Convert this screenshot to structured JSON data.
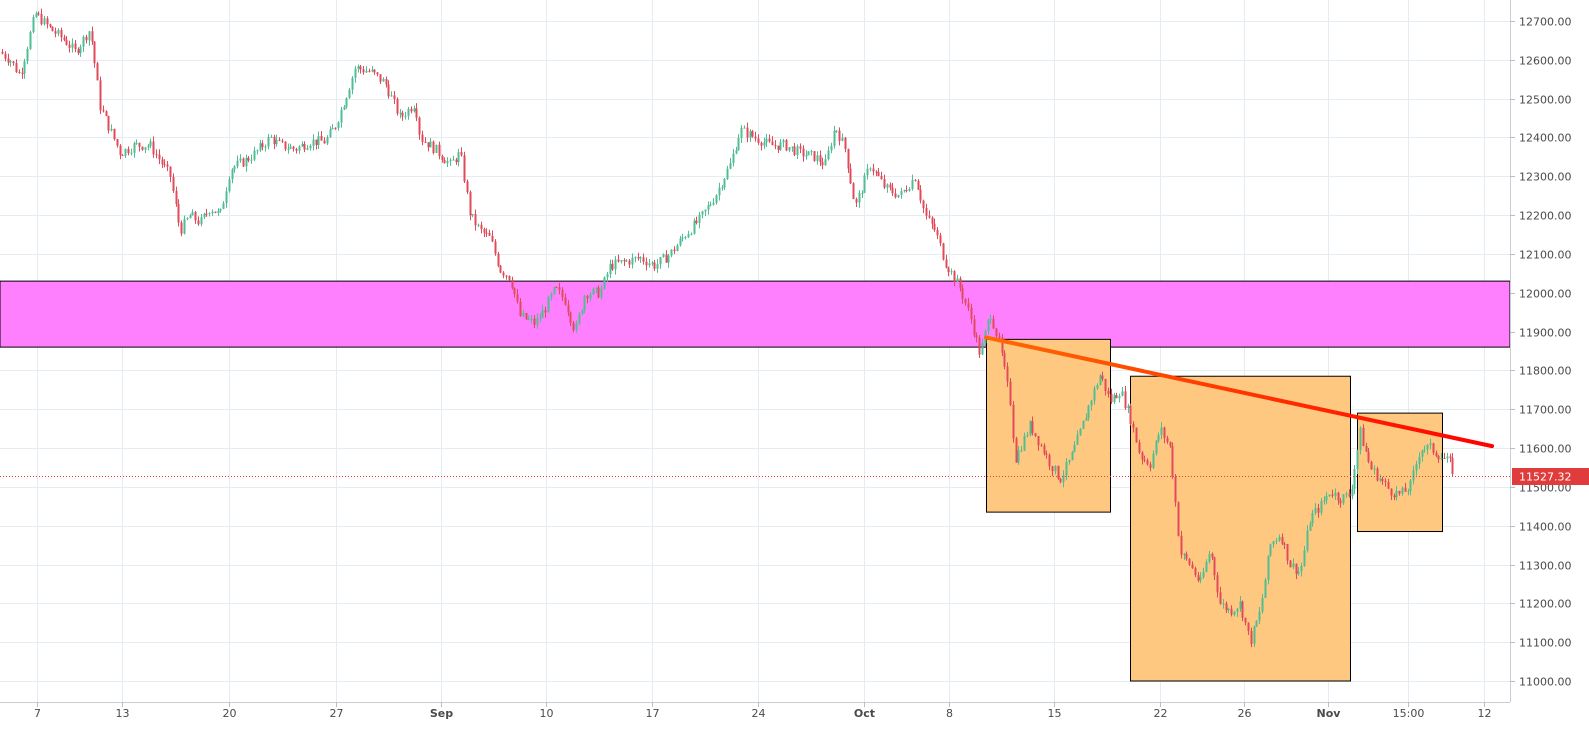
{
  "chart_data": {
    "type": "candlestick",
    "title": "",
    "xlabel": "",
    "ylabel": "",
    "ylim": [
      10980,
      12740
    ],
    "y_ticks": [
      11000,
      11100,
      11200,
      11300,
      11400,
      11500,
      11600,
      11700,
      11800,
      11900,
      12000,
      12100,
      12200,
      12300,
      12400,
      12500,
      12600,
      12700
    ],
    "y_tick_labels": [
      "11000.00",
      "11100.00",
      "11200.00",
      "11300.00",
      "11400.00",
      "11500.00",
      "11600.00",
      "11700.00",
      "11800.00",
      "11900.00",
      "12000.00",
      "12100.00",
      "12200.00",
      "12300.00",
      "12400.00",
      "12500.00",
      "12600.00",
      "12700.00"
    ],
    "x_ticks": [
      {
        "label": "7",
        "bold": false
      },
      {
        "label": "13",
        "bold": false
      },
      {
        "label": "20",
        "bold": false
      },
      {
        "label": "27",
        "bold": false
      },
      {
        "label": "Sep",
        "bold": true
      },
      {
        "label": "10",
        "bold": false
      },
      {
        "label": "17",
        "bold": false
      },
      {
        "label": "24",
        "bold": false
      },
      {
        "label": "Oct",
        "bold": true
      },
      {
        "label": "8",
        "bold": false
      },
      {
        "label": "15",
        "bold": false
      },
      {
        "label": "22",
        "bold": false
      },
      {
        "label": "26",
        "bold": false
      },
      {
        "label": "Nov",
        "bold": true
      },
      {
        "label": "15:00",
        "bold": false
      },
      {
        "label": "12",
        "bold": false
      }
    ],
    "series": [
      {
        "path": [
          [
            0,
            12620
          ],
          [
            10,
            12600
          ],
          [
            20,
            12560
          ],
          [
            35,
            12720
          ],
          [
            50,
            12680
          ],
          [
            65,
            12650
          ],
          [
            75,
            12620
          ],
          [
            90,
            12680
          ],
          [
            100,
            12480
          ],
          [
            110,
            12420
          ],
          [
            120,
            12360
          ],
          [
            135,
            12380
          ],
          [
            150,
            12380
          ],
          [
            160,
            12340
          ],
          [
            170,
            12300
          ],
          [
            180,
            12160
          ],
          [
            190,
            12200
          ],
          [
            200,
            12180
          ],
          [
            210,
            12220
          ],
          [
            220,
            12200
          ],
          [
            230,
            12320
          ],
          [
            245,
            12340
          ],
          [
            255,
            12360
          ],
          [
            270,
            12400
          ],
          [
            280,
            12380
          ],
          [
            295,
            12370
          ],
          [
            310,
            12390
          ],
          [
            325,
            12390
          ],
          [
            335,
            12430
          ],
          [
            345,
            12500
          ],
          [
            355,
            12580
          ],
          [
            370,
            12570
          ],
          [
            385,
            12540
          ],
          [
            400,
            12450
          ],
          [
            415,
            12490
          ],
          [
            420,
            12400
          ],
          [
            435,
            12370
          ],
          [
            450,
            12330
          ],
          [
            460,
            12360
          ],
          [
            470,
            12200
          ],
          [
            480,
            12160
          ],
          [
            490,
            12140
          ],
          [
            500,
            12060
          ],
          [
            510,
            12040
          ],
          [
            520,
            11940
          ],
          [
            535,
            11920
          ],
          [
            545,
            11960
          ],
          [
            555,
            12010
          ],
          [
            565,
            11980
          ],
          [
            575,
            11900
          ],
          [
            585,
            12000
          ],
          [
            600,
            12000
          ],
          [
            610,
            12070
          ],
          [
            625,
            12080
          ],
          [
            640,
            12090
          ],
          [
            655,
            12070
          ],
          [
            670,
            12100
          ],
          [
            685,
            12150
          ],
          [
            700,
            12190
          ],
          [
            715,
            12250
          ],
          [
            730,
            12330
          ],
          [
            740,
            12420
          ],
          [
            755,
            12400
          ],
          [
            770,
            12380
          ],
          [
            785,
            12380
          ],
          [
            800,
            12360
          ],
          [
            815,
            12350
          ],
          [
            825,
            12330
          ],
          [
            835,
            12430
          ],
          [
            845,
            12370
          ],
          [
            855,
            12220
          ],
          [
            870,
            12330
          ],
          [
            885,
            12270
          ],
          [
            900,
            12250
          ],
          [
            915,
            12300
          ],
          [
            925,
            12200
          ],
          [
            935,
            12160
          ],
          [
            945,
            12080
          ],
          [
            960,
            12010
          ],
          [
            970,
            11940
          ],
          [
            980,
            11840
          ],
          [
            990,
            11950
          ],
          [
            1000,
            11860
          ],
          [
            1010,
            11720
          ],
          [
            1015,
            11570
          ],
          [
            1030,
            11660
          ],
          [
            1040,
            11610
          ],
          [
            1050,
            11560
          ],
          [
            1060,
            11520
          ],
          [
            1070,
            11570
          ],
          [
            1080,
            11640
          ],
          [
            1090,
            11720
          ],
          [
            1100,
            11790
          ],
          [
            1110,
            11720
          ],
          [
            1120,
            11750
          ],
          [
            1130,
            11680
          ],
          [
            1140,
            11580
          ],
          [
            1150,
            11560
          ],
          [
            1160,
            11650
          ],
          [
            1170,
            11600
          ],
          [
            1180,
            11330
          ],
          [
            1190,
            11300
          ],
          [
            1200,
            11250
          ],
          [
            1210,
            11340
          ],
          [
            1220,
            11200
          ],
          [
            1230,
            11180
          ],
          [
            1240,
            11200
          ],
          [
            1250,
            11100
          ],
          [
            1260,
            11180
          ],
          [
            1270,
            11350
          ],
          [
            1280,
            11380
          ],
          [
            1290,
            11300
          ],
          [
            1300,
            11280
          ],
          [
            1310,
            11420
          ],
          [
            1320,
            11450
          ],
          [
            1330,
            11490
          ],
          [
            1340,
            11470
          ],
          [
            1350,
            11480
          ],
          [
            1360,
            11640
          ],
          [
            1370,
            11550
          ],
          [
            1380,
            11520
          ],
          [
            1390,
            11490
          ],
          [
            1400,
            11480
          ],
          [
            1410,
            11500
          ],
          [
            1420,
            11600
          ],
          [
            1430,
            11600
          ],
          [
            1440,
            11580
          ],
          [
            1450,
            11560
          ],
          [
            1455,
            11527
          ]
        ]
      }
    ],
    "current_price": 11527.32,
    "current_price_label": "11527.32",
    "zone": {
      "low": 11860,
      "high": 12030,
      "color": "#ff80ff"
    },
    "boxes": [
      {
        "x0": 986,
        "x1": 1110,
        "low": 11435,
        "high": 11880
      },
      {
        "x0": 1130,
        "x1": 1350,
        "low": 11000,
        "high": 11785
      },
      {
        "x0": 1357,
        "x1": 1442,
        "low": 11385,
        "high": 11690
      }
    ],
    "trendline": {
      "x0": 986,
      "x1": 1492,
      "y0": 11885,
      "y1": 11605
    },
    "colors": {
      "up": "#4fbe93",
      "down": "#e04a5a",
      "grid": "#e6edf2",
      "box_fill": "#ffc880",
      "trend_start": "#ff6a00",
      "trend_end": "#ff0000",
      "price_line": "#e03c3c"
    },
    "grid": true,
    "legend": "none"
  }
}
